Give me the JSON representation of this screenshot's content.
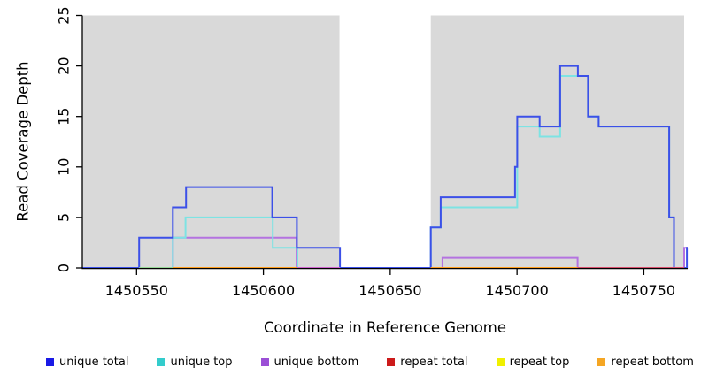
{
  "chart_data": {
    "type": "line",
    "subtype": "step-after-coverage",
    "title": "",
    "xlabel": "Coordinate in Reference Genome",
    "ylabel": "Read Coverage Depth",
    "xlim": [
      1450528.6,
      1450767.3
    ],
    "ylim": [
      0,
      25
    ],
    "x_ticks": [
      1450550,
      1450600,
      1450650,
      1450700,
      1450750
    ],
    "y_ticks": [
      0,
      5,
      10,
      15,
      20,
      25
    ],
    "grid": false,
    "legend_position": "bottom",
    "background_bands": [
      {
        "from": 1450528.6,
        "to": 1450630.0,
        "color": "#d9d9d9"
      },
      {
        "from": 1450666.0,
        "to": 1450765.9,
        "color": "#d9d9d9"
      }
    ],
    "series": [
      {
        "name": "repeat total",
        "color": "#cc1a1a",
        "steps": [
          [
            1450528.6,
            0
          ]
        ]
      },
      {
        "name": "repeat top",
        "color": "#f0f000",
        "steps": [
          [
            1450528.6,
            0
          ]
        ]
      },
      {
        "name": "repeat bottom",
        "color": "#ff9d1c",
        "steps": [
          [
            1450528.6,
            0
          ]
        ]
      },
      {
        "name": "unique bottom",
        "color": "#b473e0",
        "steps": [
          [
            1450528.6,
            0
          ],
          [
            1450564.3,
            3
          ],
          [
            1450613.1,
            0
          ],
          [
            1450670.6,
            1
          ],
          [
            1450723.9,
            0
          ],
          [
            1450765.9,
            2
          ]
        ]
      },
      {
        "name": "unique top",
        "color": "#7de3e3",
        "steps": [
          [
            1450528.6,
            0
          ],
          [
            1450564.3,
            3
          ],
          [
            1450569.3,
            5
          ],
          [
            1450603.7,
            2
          ],
          [
            1450613.4,
            0
          ],
          [
            1450666.0,
            4
          ],
          [
            1450669.9,
            6
          ],
          [
            1450700.1,
            14
          ],
          [
            1450708.9,
            13
          ],
          [
            1450717.0,
            19
          ],
          [
            1450728.0,
            15
          ],
          [
            1450732.2,
            14
          ],
          [
            1450760.0,
            5
          ],
          [
            1450761.9,
            0
          ]
        ]
      },
      {
        "name": "unique total",
        "color": "#3c50e8",
        "steps": [
          [
            1450528.6,
            0
          ],
          [
            1450551.0,
            3
          ],
          [
            1450564.3,
            6
          ],
          [
            1450569.5,
            8
          ],
          [
            1450603.5,
            5
          ],
          [
            1450613.2,
            2
          ],
          [
            1450630.2,
            0
          ],
          [
            1450666.0,
            4
          ],
          [
            1450669.9,
            7
          ],
          [
            1450699.2,
            10
          ],
          [
            1450700.1,
            15
          ],
          [
            1450708.9,
            14
          ],
          [
            1450717.0,
            20
          ],
          [
            1450724.0,
            19
          ],
          [
            1450728.0,
            15
          ],
          [
            1450732.2,
            14
          ],
          [
            1450760.0,
            5
          ],
          [
            1450761.9,
            0
          ],
          [
            1450767.0,
            2
          ]
        ]
      }
    ],
    "baseline_overlays": [
      {
        "from": 1450551.0,
        "to": 1450564.3,
        "color": "#95d795",
        "note": "unique-top + repeat-top blend"
      },
      {
        "from": 1450564.3,
        "to": 1450613.1,
        "color": "#ff9d1c",
        "note": "repeat bottom"
      },
      {
        "from": 1450613.1,
        "to": 1450630.2,
        "color": "#cf63cf",
        "note": "unique-bottom blend"
      },
      {
        "from": 1450666.0,
        "to": 1450723.9,
        "color": "#ff9d1c",
        "note": "repeat bottom"
      },
      {
        "from": 1450723.9,
        "to": 1450765.9,
        "color": "#d94f6e",
        "note": "repeat-total blend"
      }
    ],
    "legend": {
      "entries": [
        {
          "label": "unique total",
          "color": "#1a1ae6"
        },
        {
          "label": "unique top",
          "color": "#33cccc"
        },
        {
          "label": "unique bottom",
          "color": "#9b4fd6"
        },
        {
          "label": "repeat total",
          "color": "#cc1a1a"
        },
        {
          "label": "repeat top",
          "color": "#f0f000"
        },
        {
          "label": "repeat bottom",
          "color": "#f5a623"
        }
      ]
    }
  }
}
